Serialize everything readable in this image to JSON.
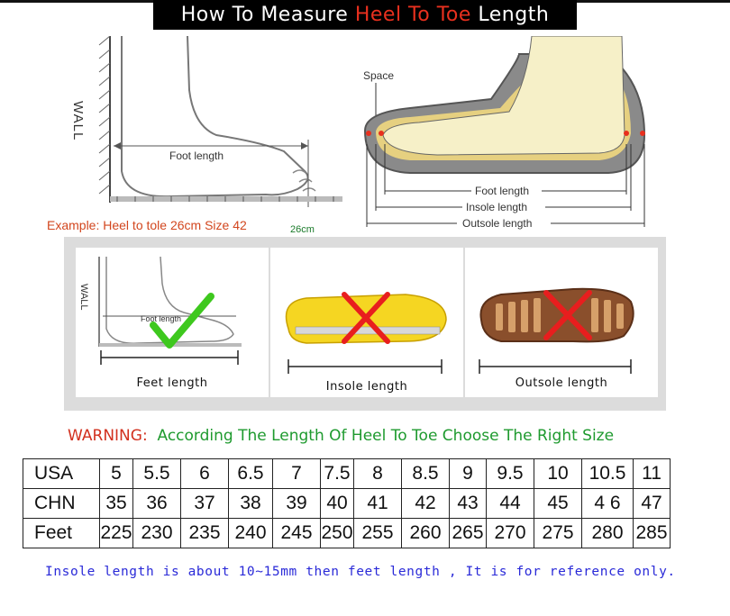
{
  "title": {
    "part1": "How To Measure ",
    "highlight": "Heel To Toe",
    "part2": " Length"
  },
  "foot_diagram": {
    "wall_label": "WALL",
    "foot_length_label": "Foot length",
    "example": "Example: Heel to tole 26cm Size 42",
    "measure_mark": "26cm"
  },
  "shoe_diagram": {
    "space_label": "Space",
    "foot_length": "Foot length",
    "insole_length": "Insole length",
    "outsole_length": "Outsole length"
  },
  "cards": [
    {
      "label": "Feet length",
      "wall": "WALL",
      "foot": "Foot length",
      "mark": "check-icon"
    },
    {
      "label": "Insole length",
      "mark": "cross-icon"
    },
    {
      "label": "Outsole length",
      "mark": "cross-icon"
    }
  ],
  "warning": {
    "prefix": "WARNING:",
    "message": "According The Length Of Heel To Toe Choose The Right Size"
  },
  "size_table": {
    "rows": [
      {
        "label": "USA",
        "values": [
          "5",
          "5.5",
          "6",
          "6.5",
          "7",
          "7.5",
          "8",
          "8.5",
          "9",
          "9.5",
          "10",
          "10.5",
          "11"
        ]
      },
      {
        "label": "CHN",
        "values": [
          "35",
          "36",
          "37",
          "38",
          "39",
          "40",
          "41",
          "42",
          "43",
          "44",
          "45",
          "4 6",
          "47"
        ]
      },
      {
        "label": "Feet",
        "values": [
          "225",
          "230",
          "235",
          "240",
          "245",
          "250",
          "255",
          "260",
          "265",
          "270",
          "275",
          "280",
          "285"
        ]
      }
    ]
  },
  "footnote": "Insole length is about 10~15mm then feet length , It is for reference only.",
  "colors": {
    "title_bg": "#000000",
    "title_highlight": "#e8301e",
    "warning": "#d2301e",
    "message": "#1e9a2e",
    "footnote": "#2a2ad8",
    "check": "#3ec81e",
    "cross": "#e81e1e"
  }
}
